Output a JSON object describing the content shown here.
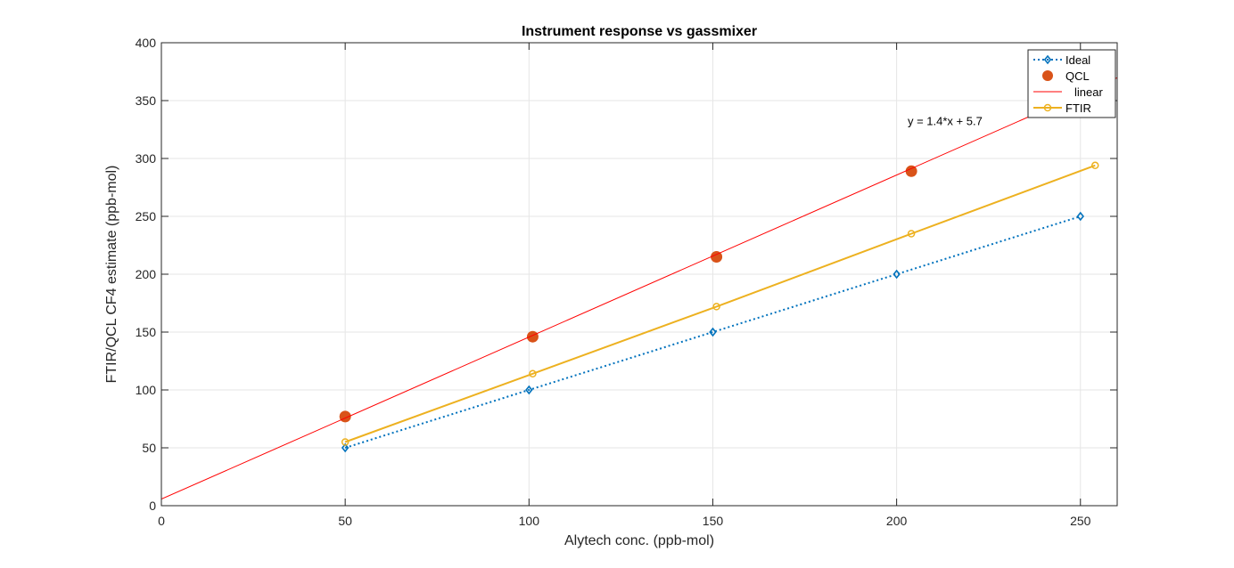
{
  "chart_data": {
    "type": "line",
    "title": "Instrument response vs gassmixer",
    "xlabel": "Alytech conc. (ppb-mol)",
    "ylabel": "FTIR/QCL CF4 estimate (ppb-mol)",
    "xlim": [
      0,
      260
    ],
    "ylim": [
      0,
      400
    ],
    "xticks": [
      0,
      50,
      100,
      150,
      200,
      250
    ],
    "yticks": [
      0,
      50,
      100,
      150,
      200,
      250,
      300,
      350,
      400
    ],
    "grid": true,
    "legend_position": "top-right",
    "series": [
      {
        "name": "Ideal",
        "style": "dotted-diamond",
        "color": "#0072BD",
        "x": [
          50,
          100,
          150,
          200,
          250
        ],
        "y": [
          50,
          100,
          150,
          200,
          250
        ]
      },
      {
        "name": "QCL",
        "style": "marker-circle",
        "color": "#D95319",
        "x": [
          50,
          101,
          151,
          204
        ],
        "y": [
          77,
          146,
          215,
          289
        ]
      },
      {
        "name": "linear",
        "style": "line",
        "color": "#FF0000",
        "slope": 1.4,
        "intercept": 5.7,
        "x": [
          0,
          260
        ]
      },
      {
        "name": "FTIR",
        "style": "solid-circle",
        "color": "#EDB120",
        "x": [
          50,
          101,
          151,
          204,
          254
        ],
        "y": [
          55,
          114,
          172,
          235,
          294
        ]
      }
    ],
    "annotations": [
      {
        "text": "y = 1.4*x + 5.7",
        "x": 203,
        "y": 329
      }
    ]
  }
}
